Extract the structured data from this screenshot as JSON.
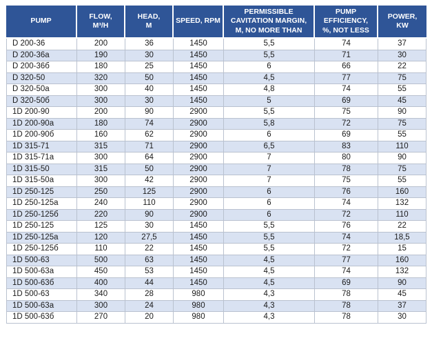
{
  "colors": {
    "header_bg": "#2F5597",
    "header_text": "#FFFFFF",
    "row_bg": "#FFFFFF",
    "row_alt_bg": "#D9E2F2",
    "border": "#B9C1CF",
    "text": "#1A1A1A"
  },
  "table": {
    "columns": [
      {
        "label": "PUMP"
      },
      {
        "label": "FLOW,\nM³/H"
      },
      {
        "label": "HEAD,\nM"
      },
      {
        "label": "SPEED, RPM"
      },
      {
        "label": "PERMISSIBLE\nCAVITATION MARGIN,\nM, NO MORE THAN"
      },
      {
        "label": "PUMP\nEFFICIENCY,\n%, NOT LESS"
      },
      {
        "label": "POWER,\nKW"
      }
    ],
    "rows": [
      [
        "D 200-36",
        "200",
        "36",
        "1450",
        "5,5",
        "74",
        "37"
      ],
      [
        "D 200-36a",
        "190",
        "30",
        "1450",
        "5,5",
        "71",
        "30"
      ],
      [
        "D 200-36б",
        "180",
        "25",
        "1450",
        "6",
        "66",
        "22"
      ],
      [
        "D 320-50",
        "320",
        "50",
        "1450",
        "4,5",
        "77",
        "75"
      ],
      [
        "D 320-50a",
        "300",
        "40",
        "1450",
        "4,8",
        "74",
        "55"
      ],
      [
        "D 320-50б",
        "300",
        "30",
        "1450",
        "5",
        "69",
        "45"
      ],
      [
        "1D 200-90",
        "200",
        "90",
        "2900",
        "5,5",
        "75",
        "90"
      ],
      [
        "1D 200-90a",
        "180",
        "74",
        "2900",
        "5,8",
        "72",
        "75"
      ],
      [
        "1D 200-90б",
        "160",
        "62",
        "2900",
        "6",
        "69",
        "55"
      ],
      [
        "1D 315-71",
        "315",
        "71",
        "2900",
        "6,5",
        "83",
        "110"
      ],
      [
        "1D 315-71a",
        "300",
        "64",
        "2900",
        "7",
        "80",
        "90"
      ],
      [
        "1D 315-50",
        "315",
        "50",
        "2900",
        "7",
        "78",
        "75"
      ],
      [
        "1D 315-50a",
        "300",
        "42",
        "2900",
        "7",
        "75",
        "55"
      ],
      [
        "1D 250-125",
        "250",
        "125",
        "2900",
        "6",
        "76",
        "160"
      ],
      [
        "1D 250-125a",
        "240",
        "110",
        "2900",
        "6",
        "74",
        "132"
      ],
      [
        "1D 250-125б",
        "220",
        "90",
        "2900",
        "6",
        "72",
        "110"
      ],
      [
        "1D 250-125",
        "125",
        "30",
        "1450",
        "5,5",
        "76",
        "22"
      ],
      [
        "1D 250-125a",
        "120",
        "27,5",
        "1450",
        "5,5",
        "74",
        "18,5"
      ],
      [
        "1D 250-125б",
        "110",
        "22",
        "1450",
        "5,5",
        "72",
        "15"
      ],
      [
        "1D 500-63",
        "500",
        "63",
        "1450",
        "4,5",
        "77",
        "160"
      ],
      [
        "1D 500-63a",
        "450",
        "53",
        "1450",
        "4,5",
        "74",
        "132"
      ],
      [
        "1D 500-63б",
        "400",
        "44",
        "1450",
        "4,5",
        "69",
        "90"
      ],
      [
        "1D 500-63",
        "340",
        "28",
        "980",
        "4,3",
        "78",
        "45"
      ],
      [
        "1D 500-63a",
        "300",
        "24",
        "980",
        "4,3",
        "78",
        "37"
      ],
      [
        "1D 500-63б",
        "270",
        "20",
        "980",
        "4,3",
        "78",
        "30"
      ]
    ]
  }
}
